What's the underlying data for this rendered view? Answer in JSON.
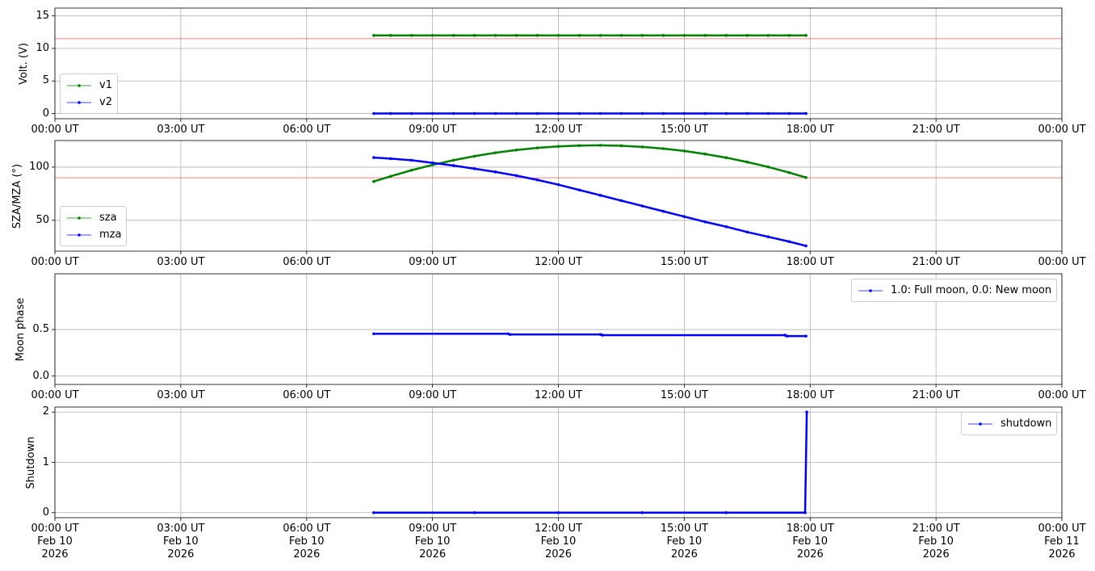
{
  "chart_data": [
    {
      "type": "line",
      "y_label": "Volt. (V)",
      "legend": "lower left",
      "grid": true,
      "x": [
        7.6,
        8,
        8.5,
        9,
        9.5,
        10,
        10.5,
        11,
        11.5,
        12,
        12.5,
        13,
        13.5,
        14,
        14.5,
        15,
        15.5,
        16,
        16.5,
        17,
        17.5,
        17.9
      ],
      "xlim": [
        0,
        24
      ],
      "xticks": [
        {
          "value": 0,
          "label": "00:00 UT"
        },
        {
          "value": 3,
          "label": "03:00 UT"
        },
        {
          "value": 6,
          "label": "06:00 UT"
        },
        {
          "value": 9,
          "label": "09:00 UT"
        },
        {
          "value": 12,
          "label": "12:00 UT"
        },
        {
          "value": 15,
          "label": "15:00 UT"
        },
        {
          "value": 18,
          "label": "18:00 UT"
        },
        {
          "value": 21,
          "label": "21:00 UT"
        },
        {
          "value": 24,
          "label": "00:00 UT"
        }
      ],
      "ylim": [
        -0.8,
        16.2
      ],
      "yticks": [
        0,
        5,
        10,
        15
      ],
      "hline": {
        "value": 11.5,
        "color": "#ff0000"
      },
      "series": [
        {
          "name": "v1",
          "color": "#008000",
          "values": [
            12.0,
            12.0,
            12.0,
            12.0,
            12.0,
            12.0,
            12.0,
            12.0,
            12.0,
            12.0,
            12.0,
            12.0,
            12.0,
            12.0,
            12.0,
            12.0,
            12.0,
            12.0,
            12.0,
            12.0,
            12.0,
            12.0
          ]
        },
        {
          "name": "v2",
          "color": "#0000ff",
          "values": [
            0,
            0,
            0,
            0,
            0,
            0,
            0,
            0,
            0,
            0,
            0,
            0,
            0,
            0,
            0,
            0,
            0,
            0,
            0,
            0,
            0,
            0
          ]
        }
      ]
    },
    {
      "type": "line",
      "y_label": "SZA/MZA (°)",
      "legend": "lower left",
      "grid": true,
      "x": [
        7.6,
        8,
        8.5,
        9,
        9.5,
        10,
        10.5,
        11,
        11.5,
        12,
        12.5,
        13,
        13.5,
        14,
        14.5,
        15,
        15.5,
        16,
        16.5,
        17,
        17.5,
        17.9
      ],
      "xlim": [
        0,
        24
      ],
      "xticks": [
        {
          "value": 0,
          "label": "00:00 UT"
        },
        {
          "value": 3,
          "label": "03:00 UT"
        },
        {
          "value": 6,
          "label": "06:00 UT"
        },
        {
          "value": 9,
          "label": "09:00 UT"
        },
        {
          "value": 12,
          "label": "12:00 UT"
        },
        {
          "value": 15,
          "label": "15:00 UT"
        },
        {
          "value": 18,
          "label": "18:00 UT"
        },
        {
          "value": 21,
          "label": "21:00 UT"
        },
        {
          "value": 24,
          "label": "00:00 UT"
        }
      ],
      "ylim": [
        21,
        125
      ],
      "yticks": [
        50,
        100
      ],
      "hline": {
        "value": 90,
        "color": "#ff0000"
      },
      "series": [
        {
          "name": "sza",
          "color": "#008000",
          "values": [
            86.5,
            91.4,
            97.1,
            102.1,
            106.5,
            110.3,
            113.5,
            116.1,
            118.1,
            119.5,
            120.3,
            120.5,
            120.1,
            119.0,
            117.4,
            115.2,
            112.3,
            108.9,
            104.8,
            100.2,
            94.9,
            90.2
          ]
        },
        {
          "name": "mza",
          "color": "#0000ff",
          "values": [
            109,
            108,
            106.5,
            104,
            101.5,
            98.5,
            95.5,
            92,
            88,
            83.5,
            78.5,
            73.5,
            68.5,
            63.5,
            58.5,
            53.5,
            48.5,
            44,
            39,
            34.5,
            30,
            26
          ]
        }
      ]
    },
    {
      "type": "line",
      "y_label": "Moon phase",
      "legend": "upper right",
      "grid": true,
      "x": [
        7.6,
        10.8,
        10.85,
        13.0,
        13.05,
        17.4,
        17.45,
        17.9
      ],
      "xlim": [
        0,
        24
      ],
      "xticks": [
        {
          "value": 0,
          "label": "00:00 UT"
        },
        {
          "value": 3,
          "label": "03:00 UT"
        },
        {
          "value": 6,
          "label": "06:00 UT"
        },
        {
          "value": 9,
          "label": "09:00 UT"
        },
        {
          "value": 12,
          "label": "12:00 UT"
        },
        {
          "value": 15,
          "label": "15:00 UT"
        },
        {
          "value": 18,
          "label": "18:00 UT"
        },
        {
          "value": 21,
          "label": "21:00 UT"
        },
        {
          "value": 24,
          "label": "00:00 UT"
        }
      ],
      "ylim": [
        -0.09,
        1.1
      ],
      "yticks": [
        {
          "value": 0,
          "label": "0.0"
        },
        0.5
      ],
      "series": [
        {
          "name": "1.0: Full moon, 0.0: New moon",
          "color": "#0000ff",
          "values": [
            0.455,
            0.455,
            0.447,
            0.447,
            0.44,
            0.44,
            0.43,
            0.43
          ]
        }
      ]
    },
    {
      "type": "line",
      "y_label": "Shutdown",
      "legend": "upper right",
      "grid": true,
      "x": [
        7.6,
        10,
        12,
        14,
        16,
        17.88,
        17.92
      ],
      "xlim": [
        0,
        24
      ],
      "xticks": [
        {
          "value": 0,
          "label": "00:00 UT\nFeb 10\n2026"
        },
        {
          "value": 3,
          "label": "03:00 UT\nFeb 10\n2026"
        },
        {
          "value": 6,
          "label": "06:00 UT\nFeb 10\n2026"
        },
        {
          "value": 9,
          "label": "09:00 UT\nFeb 10\n2026"
        },
        {
          "value": 12,
          "label": "12:00 UT\nFeb 10\n2026"
        },
        {
          "value": 15,
          "label": "15:00 UT\nFeb 10\n2026"
        },
        {
          "value": 18,
          "label": "18:00 UT\nFeb 10\n2026"
        },
        {
          "value": 21,
          "label": "21:00 UT\nFeb 10\n2026"
        },
        {
          "value": 24,
          "label": "00:00 UT\nFeb 11\n2026"
        }
      ],
      "ylim": [
        -0.1,
        2.1
      ],
      "yticks": [
        0,
        1,
        2
      ],
      "series": [
        {
          "name": "shutdown",
          "color": "#0000ff",
          "values": [
            0,
            0,
            0,
            0,
            0,
            0,
            2
          ]
        }
      ]
    }
  ]
}
